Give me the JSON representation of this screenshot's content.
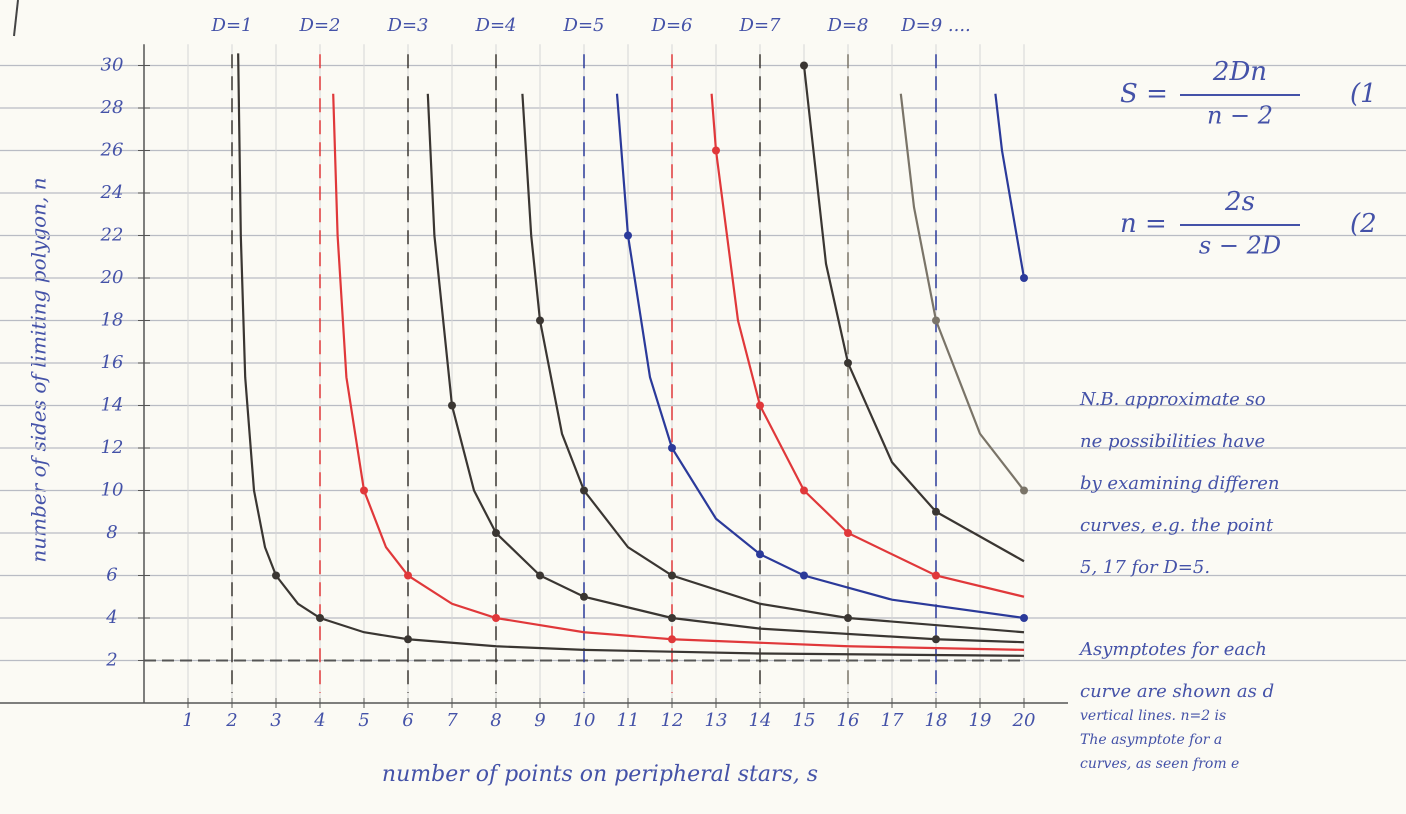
{
  "chart_data": {
    "type": "line",
    "xlabel": "number of points on peripheral stars, s",
    "ylabel": "number of sides of limiting polygon, n",
    "xlim": [
      0,
      21
    ],
    "ylim": [
      0,
      31
    ],
    "xticks": [
      1,
      2,
      3,
      4,
      5,
      6,
      7,
      8,
      9,
      10,
      11,
      12,
      13,
      14,
      15,
      16,
      17,
      18,
      19,
      20
    ],
    "yticks": [
      2,
      4,
      6,
      8,
      10,
      12,
      14,
      16,
      18,
      20,
      22,
      24,
      26,
      28,
      30
    ],
    "grid": true,
    "asymptotes": {
      "s": [
        2,
        4,
        6,
        8,
        10,
        12,
        14,
        16,
        18
      ],
      "n": 2
    },
    "series": [
      {
        "name": "D=1",
        "color": "#3a3632",
        "x": [
          2.14,
          2.2,
          2.3,
          2.5,
          2.75,
          3,
          3.5,
          4,
          5,
          6,
          8,
          10,
          14,
          20
        ],
        "values": [
          30.57,
          22,
          15.33,
          10,
          7.33,
          6,
          4.67,
          4,
          3.33,
          3,
          2.67,
          2.5,
          2.33,
          2.22
        ],
        "dots_x": [
          3,
          4,
          6
        ],
        "dots_y": [
          6,
          4,
          3
        ]
      },
      {
        "name": "D=2",
        "color": "#e0383a",
        "x": [
          4.3,
          4.4,
          4.6,
          5,
          5.5,
          6,
          7,
          8,
          10,
          12,
          16,
          20
        ],
        "values": [
          28.67,
          22,
          15.33,
          10,
          7.33,
          6,
          4.67,
          4,
          3.33,
          3,
          2.67,
          2.5
        ],
        "dots_x": [
          5,
          6,
          8,
          12
        ],
        "dots_y": [
          10,
          6,
          4,
          3
        ]
      },
      {
        "name": "D=3",
        "color": "#3a3632",
        "x": [
          6.45,
          6.6,
          7,
          7.5,
          8,
          9,
          10,
          12,
          14,
          18,
          20
        ],
        "values": [
          28.67,
          22,
          14,
          10,
          8,
          6,
          5,
          4,
          3.5,
          3,
          2.86
        ],
        "dots_x": [
          7,
          8,
          9,
          10,
          12,
          18
        ],
        "dots_y": [
          14,
          8,
          6,
          5,
          4,
          3
        ]
      },
      {
        "name": "D=4",
        "color": "#3a3632",
        "x": [
          8.6,
          8.8,
          9,
          9.5,
          10,
          11,
          12,
          14,
          16,
          20
        ],
        "values": [
          28.67,
          22,
          18,
          12.67,
          10,
          7.33,
          6,
          4.67,
          4,
          3.33
        ],
        "dots_x": [
          9,
          10,
          12,
          16
        ],
        "dots_y": [
          18,
          10,
          6,
          4
        ]
      },
      {
        "name": "D=5",
        "color": "#2b3a9a",
        "x": [
          10.75,
          11,
          11.5,
          12,
          13,
          14,
          15,
          17,
          20
        ],
        "values": [
          28.67,
          22,
          15.33,
          12,
          8.67,
          7,
          6,
          4.86,
          4
        ],
        "dots_x": [
          11,
          12,
          14,
          15,
          20
        ],
        "dots_y": [
          22,
          12,
          7,
          6,
          4
        ]
      },
      {
        "name": "D=6",
        "color": "#e0383a",
        "x": [
          12.9,
          13,
          13.5,
          14,
          15,
          16,
          18,
          20
        ],
        "values": [
          28.67,
          26,
          18,
          14,
          10,
          8,
          6,
          5
        ],
        "dots_x": [
          13,
          14,
          15,
          16,
          18
        ],
        "dots_y": [
          26,
          14,
          10,
          8,
          6
        ]
      },
      {
        "name": "D=7",
        "color": "#3a3632",
        "x": [
          15,
          15.5,
          16,
          17,
          18,
          20
        ],
        "values": [
          30,
          20.67,
          16,
          11.33,
          9,
          6.67
        ],
        "dots_x": [
          15,
          16,
          18
        ],
        "dots_y": [
          30,
          16,
          9
        ]
      },
      {
        "name": "D=8",
        "color": "#7a7468",
        "x": [
          17.2,
          17.5,
          18,
          19,
          20
        ],
        "values": [
          28.67,
          23.33,
          18,
          12.67,
          10
        ],
        "dots_x": [
          18,
          20
        ],
        "dots_y": [
          18,
          10
        ]
      },
      {
        "name": "D=9 ....",
        "color": "#2b3a9a",
        "x": [
          19.35,
          19.5,
          20
        ],
        "values": [
          28.67,
          26,
          20
        ],
        "dots_x": [
          20
        ],
        "dots_y": [
          20
        ]
      }
    ]
  },
  "formulas": [
    {
      "lhs": "S =",
      "num": "2Dn",
      "den": "n − 2",
      "tag": "(1"
    },
    {
      "lhs": "n =",
      "num": "2s",
      "den": "s − 2D",
      "tag": "(2"
    }
  ],
  "notes": [
    "N.B. approximate so",
    "ne possibilities have",
    "by examining differen",
    "curves, e.g. the point",
    "5, 17 for D=5.",
    "Asymptotes for each",
    "curve are shown as d",
    "vertical lines. n=2 is",
    "The asymptote for a",
    "curves, as seen from e"
  ]
}
